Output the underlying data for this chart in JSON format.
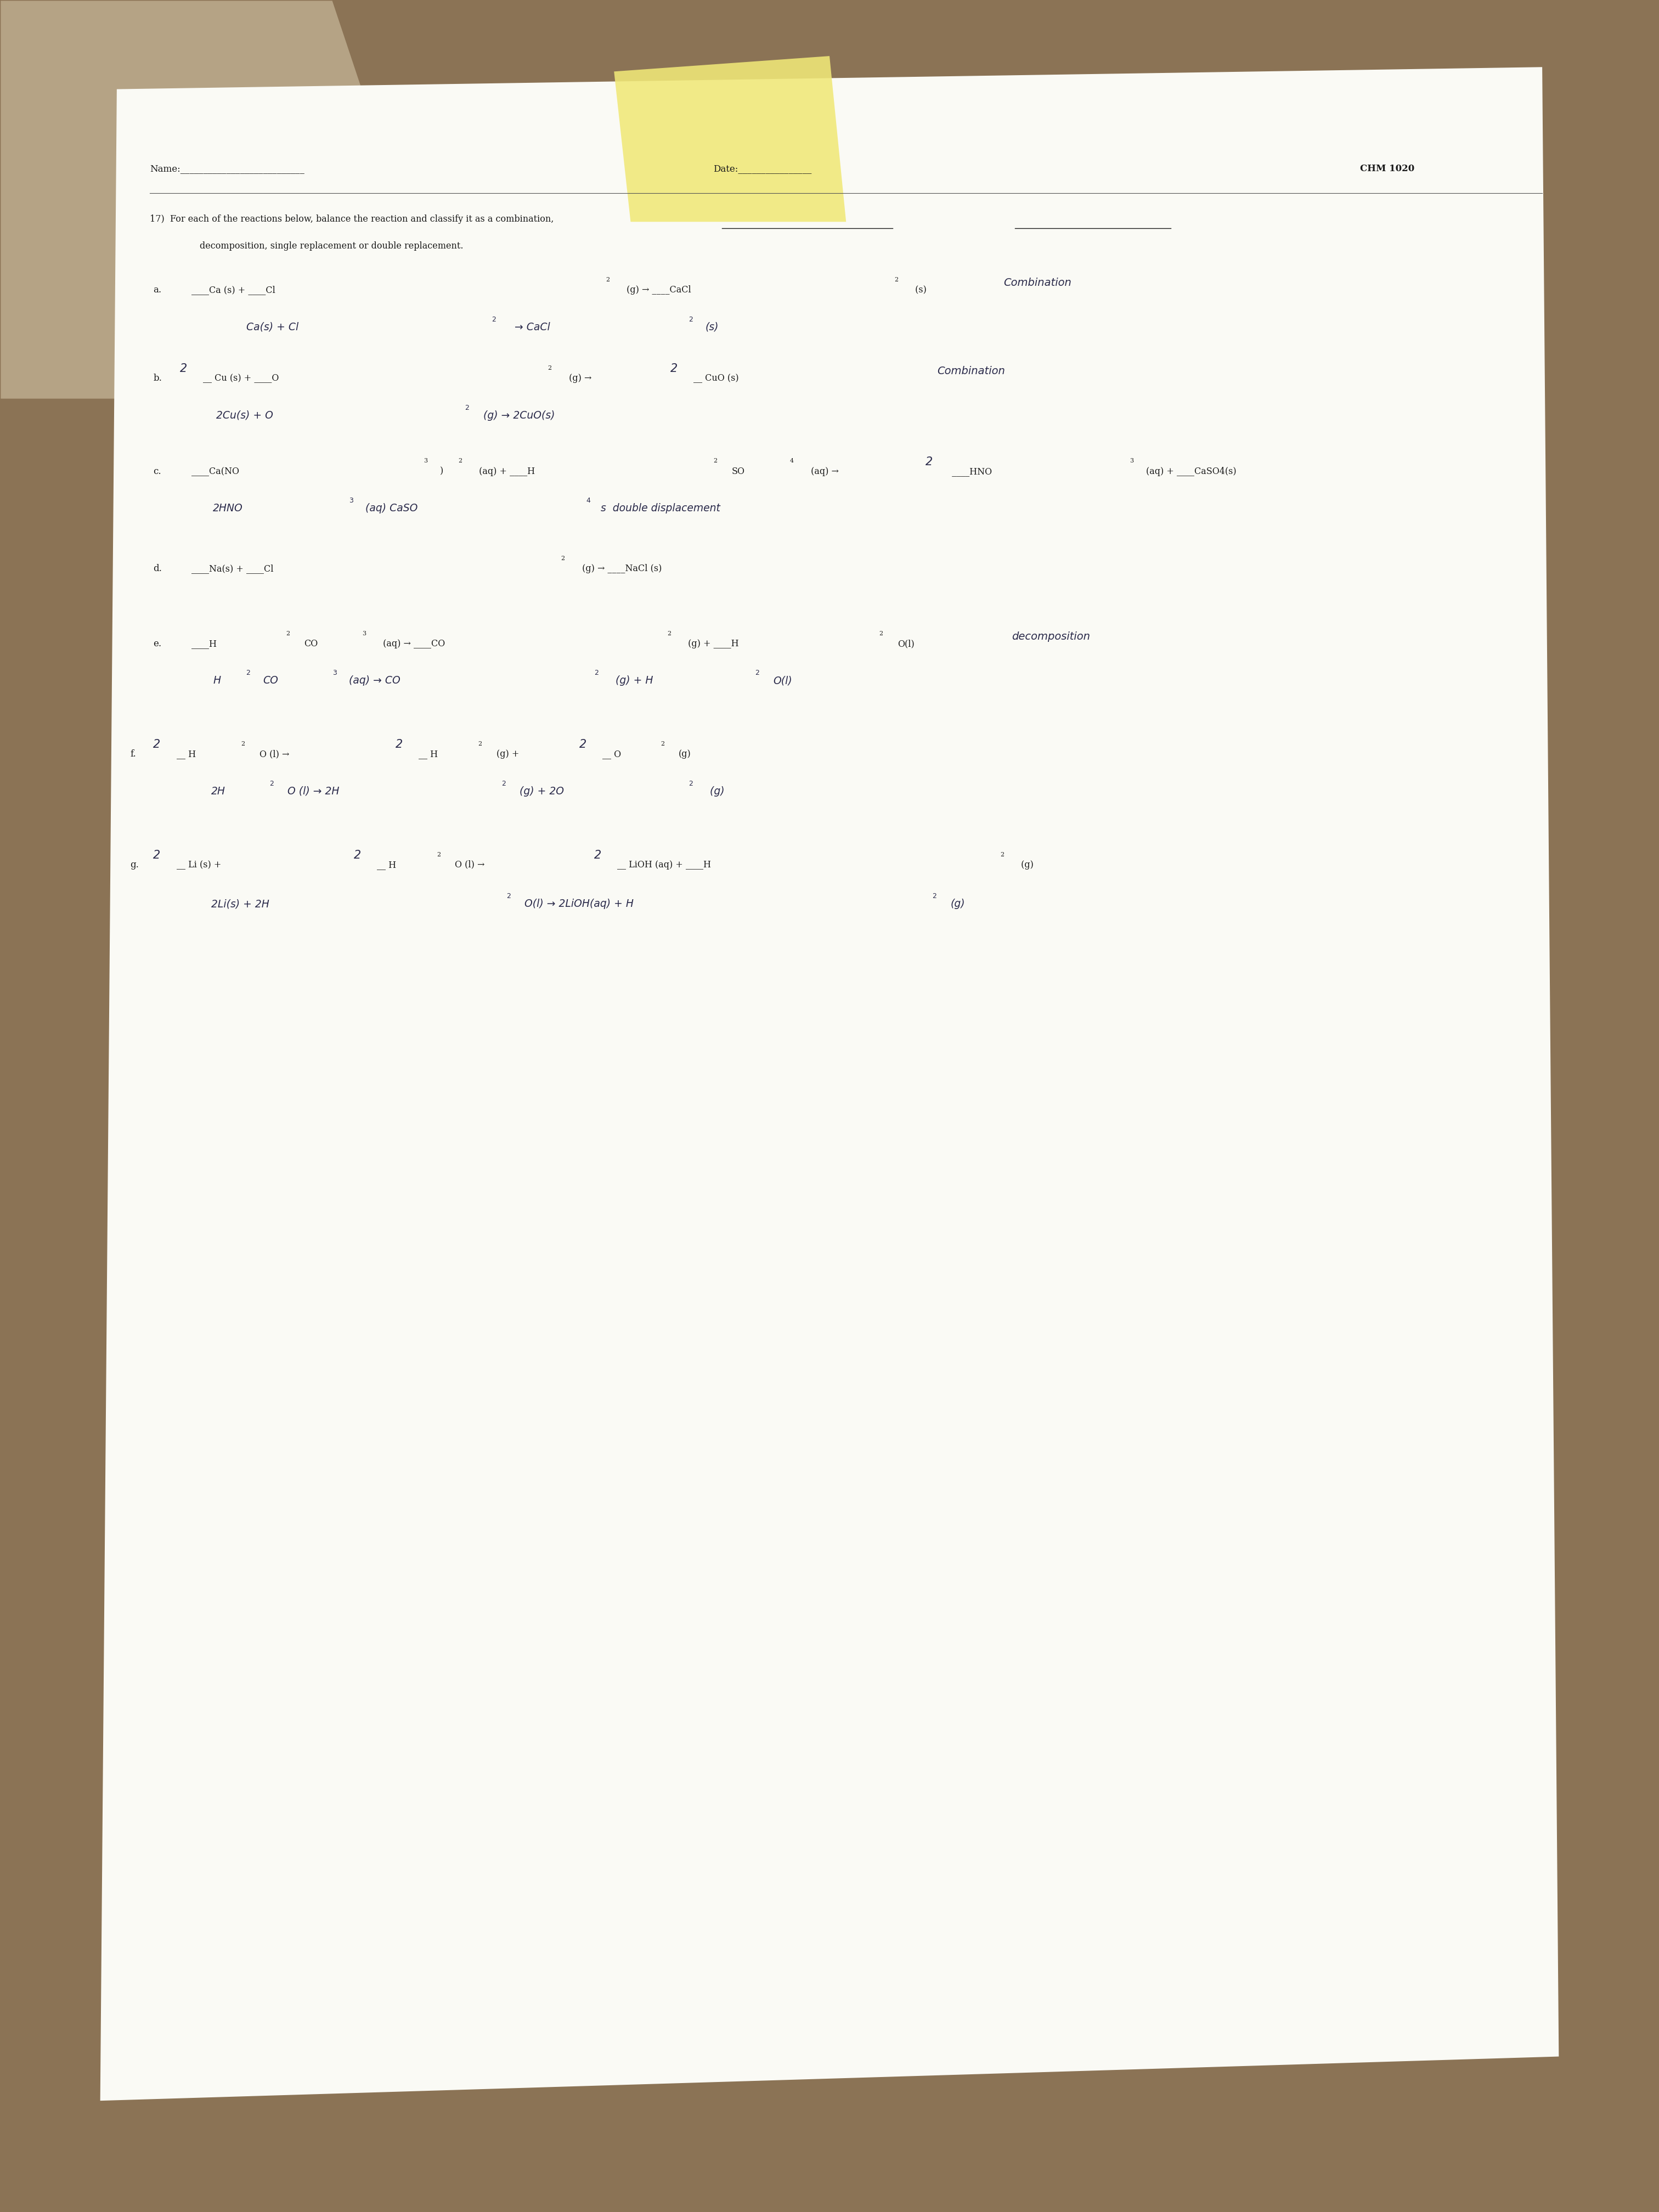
{
  "bg_color": "#8B7355",
  "paper_color": "#fafaf5",
  "carpet_color": "#c8b89a",
  "yellow_color": "#f0e878",
  "printed_color": "#1a1a1a",
  "hw_color": "#2a2a4a",
  "header_name": "Name:___________________________",
  "header_date": "Date:________________",
  "header_course": "CHM 1020",
  "title_line1": "17)  For each of the reactions below, balance the reaction and classify it as a combination,",
  "title_line2": "decomposition, single replacement or double replacement."
}
